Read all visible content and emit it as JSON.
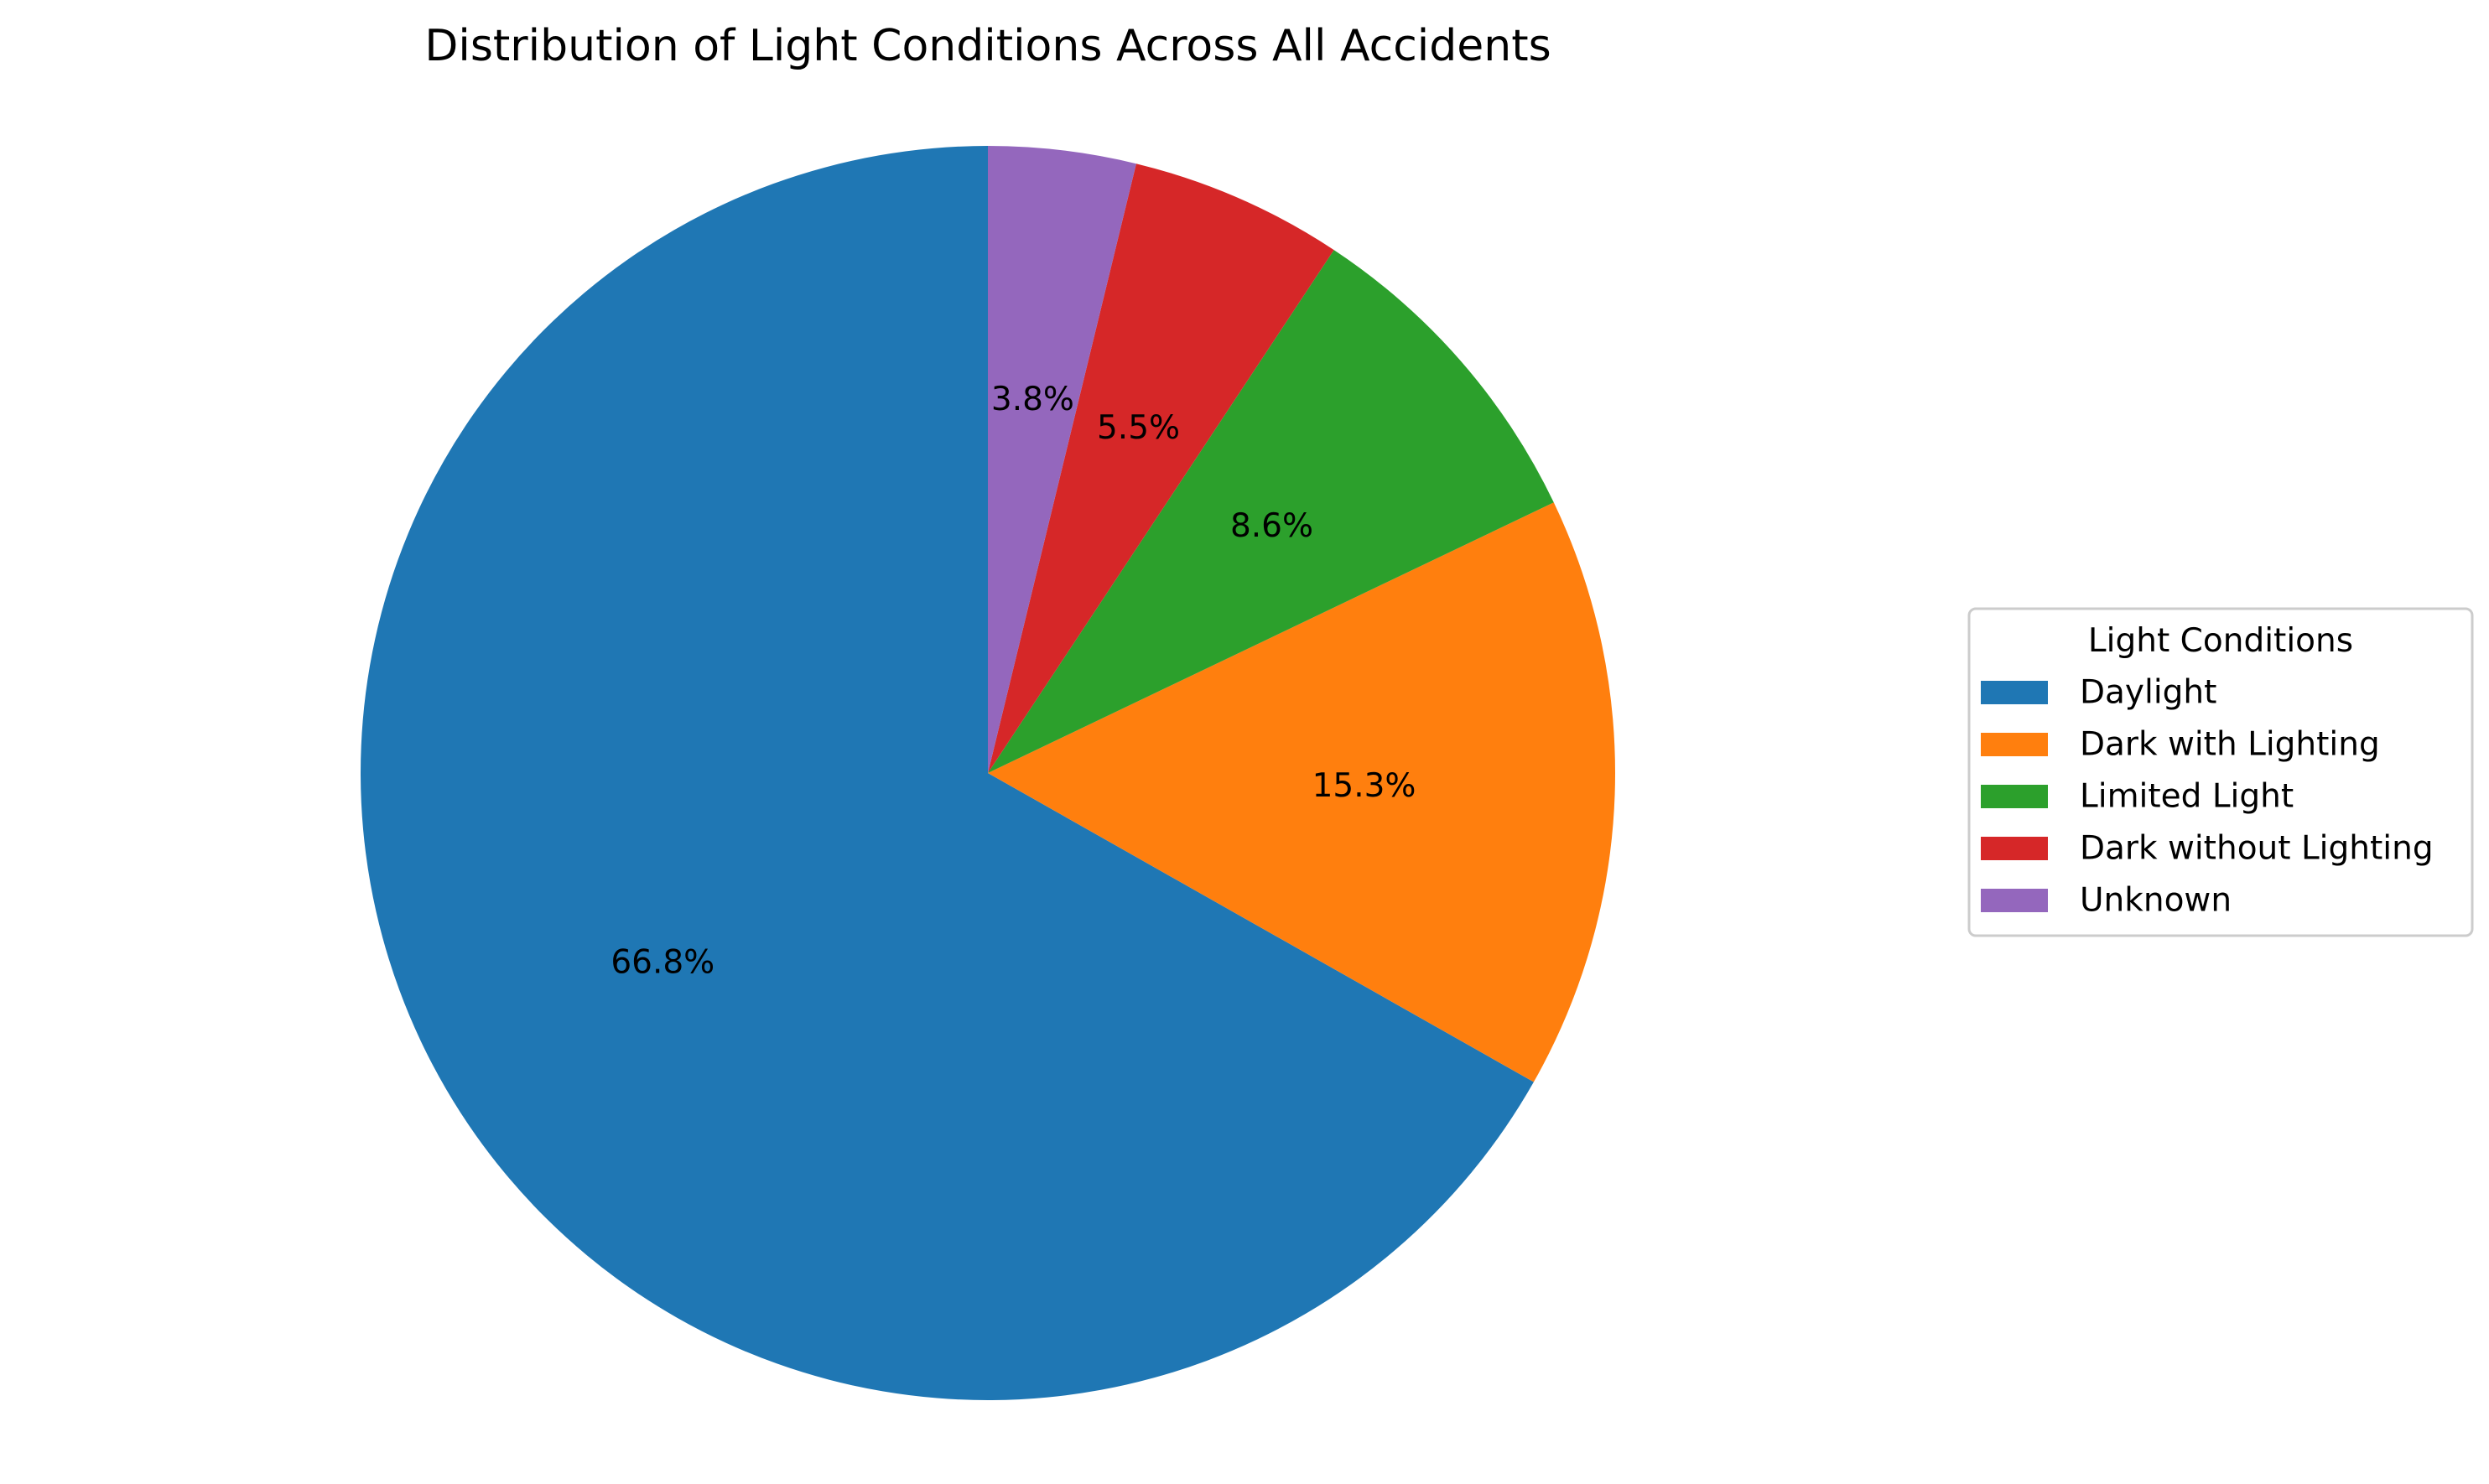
{
  "chart_data": {
    "type": "pie",
    "title": "Distribution of Light Conditions Across All Accidents",
    "start_angle_deg": 90,
    "direction": "clockwise-from-right-side-reversed",
    "slices": [
      {
        "label": "Daylight",
        "value": 66.8,
        "pct_label": "66.8%",
        "color": "#1f77b4"
      },
      {
        "label": "Dark with Lighting",
        "value": 15.3,
        "pct_label": "15.3%",
        "color": "#ff7f0e"
      },
      {
        "label": "Limited Light",
        "value": 8.6,
        "pct_label": "8.6%",
        "color": "#2ca02c"
      },
      {
        "label": "Dark without Lighting",
        "value": 5.5,
        "pct_label": "5.5%",
        "color": "#d62728"
      },
      {
        "label": "Unknown",
        "value": 3.8,
        "pct_label": "3.8%",
        "color": "#9467bd"
      }
    ],
    "legend": {
      "title": "Light Conditions",
      "placement": "right"
    }
  }
}
